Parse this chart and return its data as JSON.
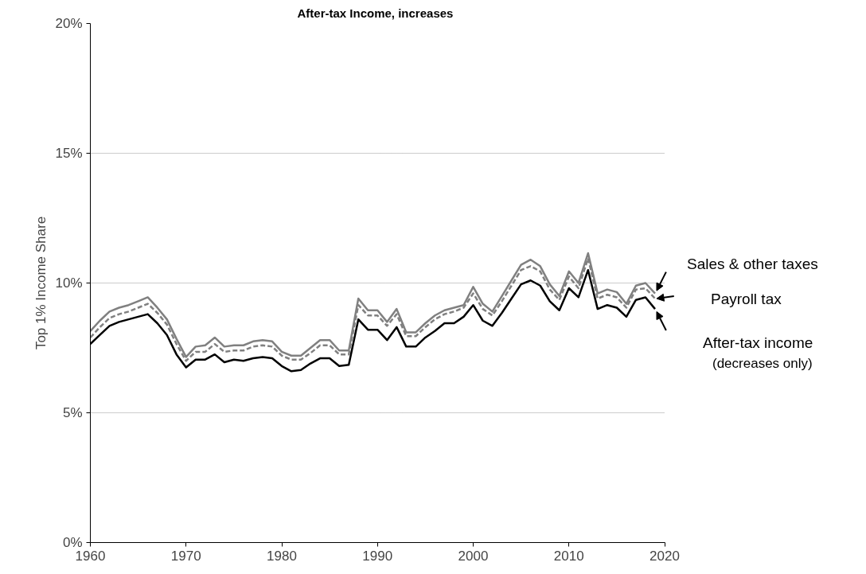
{
  "chart_data": {
    "type": "line",
    "title": "After-tax Income, increases",
    "ylabel": "Top 1% Income Share",
    "x": [
      1960,
      1961,
      1962,
      1963,
      1964,
      1965,
      1966,
      1967,
      1968,
      1969,
      1970,
      1971,
      1972,
      1973,
      1974,
      1975,
      1976,
      1977,
      1978,
      1979,
      1980,
      1981,
      1982,
      1983,
      1984,
      1985,
      1986,
      1987,
      1988,
      1989,
      1990,
      1991,
      1992,
      1993,
      1994,
      1995,
      1996,
      1997,
      1998,
      1999,
      2000,
      2001,
      2002,
      2003,
      2004,
      2005,
      2006,
      2007,
      2008,
      2009,
      2010,
      2011,
      2012,
      2013,
      2014,
      2015,
      2016,
      2017,
      2018,
      2019
    ],
    "series": [
      {
        "name": "Sales & other taxes",
        "color": "#808080",
        "line_style": "solid",
        "values": [
          8.15,
          8.55,
          8.9,
          9.05,
          9.15,
          9.3,
          9.45,
          9.05,
          8.6,
          7.85,
          7.15,
          7.55,
          7.6,
          7.9,
          7.55,
          7.6,
          7.6,
          7.75,
          7.8,
          7.75,
          7.35,
          7.2,
          7.2,
          7.5,
          7.8,
          7.8,
          7.4,
          7.4,
          9.4,
          8.95,
          8.95,
          8.5,
          9.0,
          8.1,
          8.1,
          8.45,
          8.75,
          8.95,
          9.05,
          9.15,
          9.85,
          9.2,
          8.9,
          9.5,
          10.1,
          10.7,
          10.9,
          10.65,
          9.95,
          9.5,
          10.45,
          10.0,
          11.15,
          9.6,
          9.75,
          9.65,
          9.2,
          9.9,
          10.0,
          9.6
        ]
      },
      {
        "name": "Payroll tax",
        "color": "#808080",
        "line_style": "dashed",
        "values": [
          7.9,
          8.3,
          8.65,
          8.8,
          8.9,
          9.05,
          9.2,
          8.85,
          8.4,
          7.65,
          7.0,
          7.35,
          7.35,
          7.65,
          7.35,
          7.4,
          7.4,
          7.55,
          7.6,
          7.55,
          7.2,
          7.05,
          7.05,
          7.3,
          7.6,
          7.6,
          7.25,
          7.25,
          9.15,
          8.75,
          8.75,
          8.35,
          8.8,
          7.95,
          7.95,
          8.3,
          8.6,
          8.8,
          8.9,
          9.05,
          9.6,
          9.0,
          8.75,
          9.3,
          9.9,
          10.5,
          10.65,
          10.45,
          9.75,
          9.35,
          10.25,
          9.8,
          10.95,
          9.4,
          9.55,
          9.45,
          9.05,
          9.75,
          9.8,
          9.4
        ]
      },
      {
        "name": "After-tax income",
        "color": "#000000",
        "line_style": "solid",
        "values": [
          7.65,
          8.0,
          8.35,
          8.5,
          8.6,
          8.7,
          8.8,
          8.45,
          8.0,
          7.25,
          6.75,
          7.05,
          7.05,
          7.25,
          6.95,
          7.05,
          7.0,
          7.1,
          7.15,
          7.1,
          6.8,
          6.6,
          6.65,
          6.9,
          7.1,
          7.1,
          6.8,
          6.85,
          8.6,
          8.2,
          8.2,
          7.8,
          8.3,
          7.55,
          7.55,
          7.9,
          8.15,
          8.45,
          8.45,
          8.7,
          9.15,
          8.55,
          8.35,
          8.85,
          9.4,
          9.95,
          10.1,
          9.9,
          9.3,
          8.95,
          9.8,
          9.45,
          10.5,
          9.0,
          9.15,
          9.05,
          8.7,
          9.35,
          9.45,
          9.0
        ]
      }
    ],
    "annotations": [
      "(decreases only)"
    ],
    "xlim": [
      1960,
      2020
    ],
    "xticks": [
      1960,
      1970,
      1980,
      1990,
      2000,
      2010,
      2020
    ],
    "ylim": [
      0,
      20
    ],
    "yticks": [
      {
        "value": 0,
        "label": "0%"
      },
      {
        "value": 5,
        "label": "5%"
      },
      {
        "value": 10,
        "label": "10%"
      },
      {
        "value": 15,
        "label": "15%"
      },
      {
        "value": 20,
        "label": "20%"
      }
    ],
    "grid": "y",
    "legend": false,
    "marker": "none"
  }
}
